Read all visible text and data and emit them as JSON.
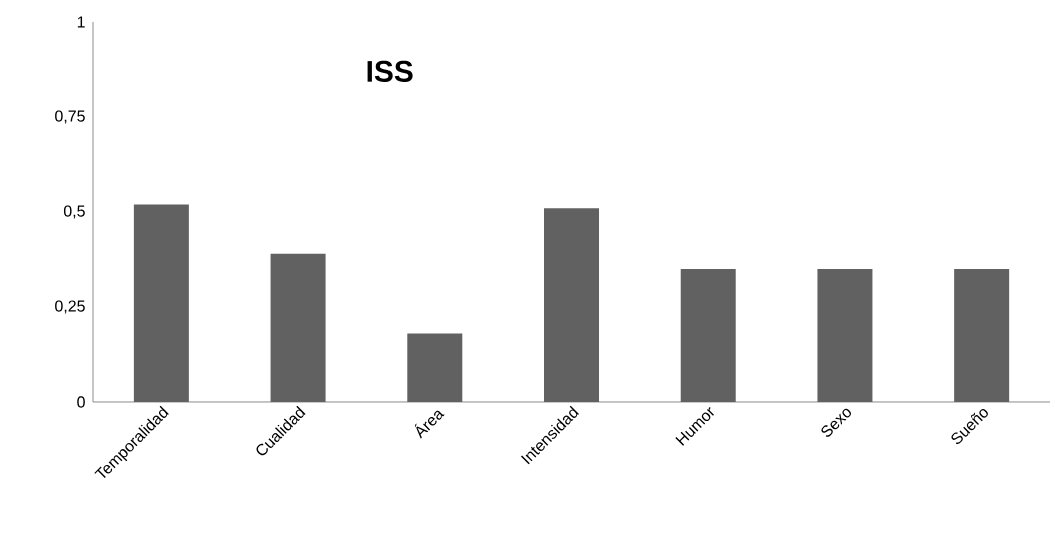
{
  "chart_data": {
    "type": "bar",
    "title": "ISS",
    "categories": [
      "Temporalidad",
      "Cualidad",
      "Área",
      "Intensidad",
      "Humor",
      "Sexo",
      "Sueño"
    ],
    "values": [
      0.52,
      0.39,
      0.18,
      0.51,
      0.35,
      0.35,
      0.35
    ],
    "color": "#616161",
    "ylim": [
      0,
      1
    ],
    "yticks": [
      0,
      {
        "value": 0.25,
        "label": "0,25"
      },
      {
        "value": 0.5,
        "label": "0,5"
      },
      {
        "value": 0.75,
        "label": "0,75"
      },
      1
    ],
    "grid": false
  }
}
